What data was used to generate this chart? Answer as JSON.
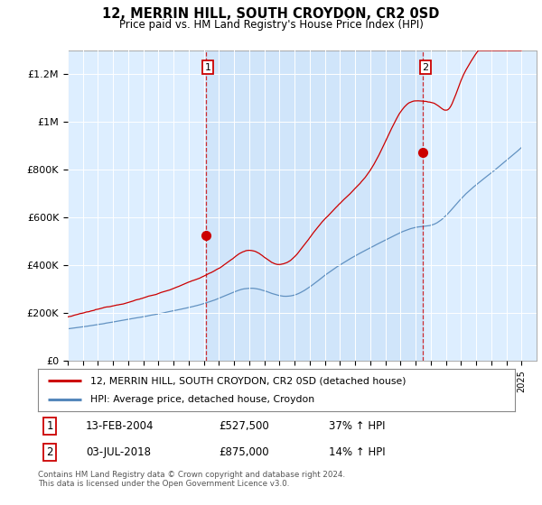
{
  "title": "12, MERRIN HILL, SOUTH CROYDON, CR2 0SD",
  "subtitle": "Price paid vs. HM Land Registry's House Price Index (HPI)",
  "ylabel_ticks": [
    "£0",
    "£200K",
    "£400K",
    "£600K",
    "£800K",
    "£1M",
    "£1.2M"
  ],
  "ytick_values": [
    0,
    200000,
    400000,
    600000,
    800000,
    1000000,
    1200000
  ],
  "ylim": [
    0,
    1300000
  ],
  "purchase1_year": 2004.12,
  "purchase1_price": 527500,
  "purchase1_label": "1",
  "purchase1_annotation": "13-FEB-2004",
  "purchase1_price_str": "£527,500",
  "purchase1_hpi": "37% ↑ HPI",
  "purchase2_year": 2018.5,
  "purchase2_price": 875000,
  "purchase2_label": "2",
  "purchase2_annotation": "03-JUL-2018",
  "purchase2_price_str": "£875,000",
  "purchase2_hpi": "14% ↑ HPI",
  "legend_line1": "12, MERRIN HILL, SOUTH CROYDON, CR2 0SD (detached house)",
  "legend_line2": "HPI: Average price, detached house, Croydon",
  "footer": "Contains HM Land Registry data © Crown copyright and database right 2024.\nThis data is licensed under the Open Government Licence v3.0.",
  "line_color_red": "#cc0000",
  "line_color_blue": "#5588bb",
  "bg_color": "#ddeeff",
  "bg_color_highlight": "#cce0ff",
  "plot_bg": "#ffffff",
  "xlim": [
    1995,
    2026
  ]
}
